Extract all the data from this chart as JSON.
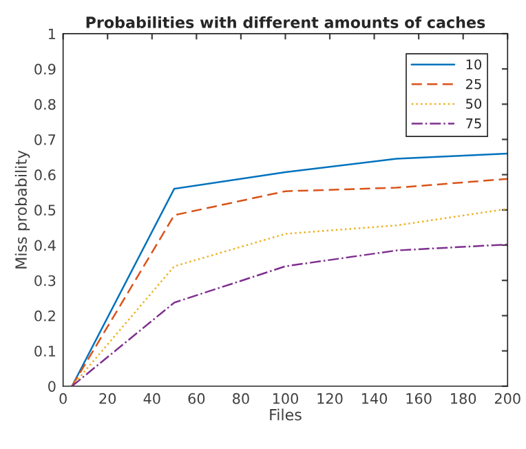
{
  "chart_data": {
    "type": "line",
    "title": "Probabilities with different amounts of caches",
    "xlabel": "Files",
    "ylabel": "Miss probability",
    "x": [
      4,
      50,
      100,
      150,
      200
    ],
    "series": [
      {
        "name": "10",
        "color": "#0072bd",
        "line_style": "solid",
        "values": [
          0,
          0.56,
          0.607,
          0.645,
          0.66
        ]
      },
      {
        "name": "25",
        "color": "#d95319",
        "line_style": "dashed",
        "values": [
          0,
          0.485,
          0.553,
          0.563,
          0.588
        ]
      },
      {
        "name": "50",
        "color": "#edb120",
        "line_style": "dotted",
        "values": [
          0,
          0.34,
          0.432,
          0.456,
          0.503
        ]
      },
      {
        "name": "75",
        "color": "#7e2f8e",
        "line_style": "dashdot",
        "values": [
          0,
          0.237,
          0.34,
          0.385,
          0.402
        ]
      }
    ],
    "xlim": [
      0,
      200
    ],
    "xticks": [
      0,
      20,
      40,
      60,
      80,
      100,
      120,
      140,
      160,
      180,
      200
    ],
    "ylim": [
      0,
      1
    ],
    "yticks": [
      0,
      0.1,
      0.2,
      0.3,
      0.4,
      0.5,
      0.6,
      0.7,
      0.8,
      0.9,
      1
    ],
    "grid": false,
    "legend": "top right",
    "marker": "none"
  }
}
